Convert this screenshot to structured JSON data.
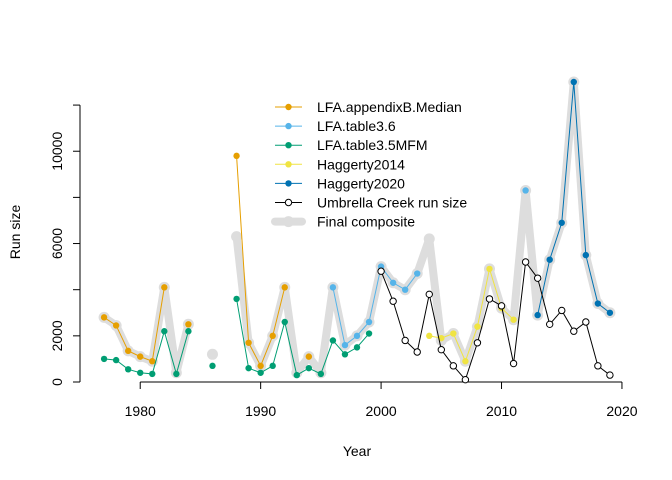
{
  "chart_data": {
    "type": "line",
    "xlabel": "Year",
    "ylabel": "Run size",
    "xlim": [
      1975,
      2021
    ],
    "ylim": [
      0,
      13000
    ],
    "x_ticks": [
      1980,
      1990,
      2000,
      2010,
      2020
    ],
    "y_ticks": [
      0,
      2000,
      6000,
      10000
    ],
    "grid": false,
    "legend_position": "top-center",
    "composite": {
      "name": "Final composite",
      "color": "#dddddd",
      "segments": [
        [
          [
            1977,
            2800
          ],
          [
            1978,
            2450
          ],
          [
            1979,
            1350
          ],
          [
            1980,
            1100
          ],
          [
            1981,
            900
          ],
          [
            1982,
            4100
          ],
          [
            1983,
            400
          ],
          [
            1984,
            2500
          ]
        ],
        [
          [
            1986,
            1200
          ]
        ],
        [
          [
            1988,
            6300
          ],
          [
            1989,
            1700
          ],
          [
            1990,
            700
          ],
          [
            1991,
            2000
          ],
          [
            1992,
            4100
          ],
          [
            1993,
            400
          ],
          [
            1994,
            1100
          ],
          [
            1995,
            400
          ],
          [
            1996,
            4100
          ],
          [
            1997,
            1600
          ],
          [
            1998,
            2000
          ],
          [
            1999,
            2600
          ],
          [
            2000,
            5000
          ],
          [
            2001,
            4300
          ],
          [
            2002,
            4000
          ],
          [
            2003,
            4700
          ],
          [
            2004,
            6200
          ],
          [
            2005,
            1800
          ],
          [
            2006,
            2100
          ],
          [
            2007,
            900
          ],
          [
            2008,
            2400
          ],
          [
            2009,
            4900
          ],
          [
            2010,
            3200
          ],
          [
            2011,
            2700
          ],
          [
            2012,
            8300
          ],
          [
            2013,
            2900
          ],
          [
            2014,
            5300
          ],
          [
            2015,
            6900
          ],
          [
            2016,
            13000
          ],
          [
            2017,
            5500
          ],
          [
            2018,
            3400
          ],
          [
            2019,
            3000
          ]
        ]
      ]
    },
    "series": [
      {
        "name": "LFA.appendixB.Median",
        "color": "#E69F00",
        "segments": [
          [
            [
              1977,
              2800
            ],
            [
              1978,
              2450
            ],
            [
              1979,
              1350
            ],
            [
              1980,
              1100
            ],
            [
              1981,
              900
            ],
            [
              1982,
              4100
            ]
          ],
          [
            [
              1984,
              2500
            ]
          ],
          [
            [
              1988,
              9800
            ],
            [
              1989,
              1700
            ],
            [
              1990,
              700
            ],
            [
              1991,
              2000
            ],
            [
              1992,
              4100
            ]
          ],
          [
            [
              1994,
              1100
            ]
          ]
        ]
      },
      {
        "name": "LFA.table3.6",
        "color": "#56B4E9",
        "segments": [
          [
            [
              1996,
              4100
            ],
            [
              1997,
              1600
            ],
            [
              1998,
              2000
            ],
            [
              1999,
              2600
            ],
            [
              2000,
              5000
            ],
            [
              2001,
              4300
            ],
            [
              2002,
              4000
            ],
            [
              2003,
              4700
            ]
          ],
          [
            [
              2012,
              8300
            ]
          ]
        ]
      },
      {
        "name": "LFA.table3.5MFM",
        "color": "#009E73",
        "segments": [
          [
            [
              1977,
              1000
            ],
            [
              1978,
              950
            ],
            [
              1979,
              550
            ],
            [
              1980,
              400
            ],
            [
              1981,
              350
            ],
            [
              1982,
              2200
            ],
            [
              1983,
              350
            ],
            [
              1984,
              2200
            ]
          ],
          [
            [
              1986,
              700
            ]
          ],
          [
            [
              1988,
              3600
            ],
            [
              1989,
              600
            ],
            [
              1990,
              400
            ],
            [
              1991,
              700
            ],
            [
              1992,
              2600
            ],
            [
              1993,
              300
            ],
            [
              1994,
              600
            ],
            [
              1995,
              350
            ],
            [
              1996,
              1800
            ],
            [
              1997,
              1200
            ],
            [
              1998,
              1500
            ],
            [
              1999,
              2100
            ]
          ]
        ]
      },
      {
        "name": "Haggerty2014",
        "color": "#F0E442",
        "segments": [
          [
            [
              2004,
              2000
            ],
            [
              2005,
              1900
            ],
            [
              2006,
              2100
            ],
            [
              2007,
              900
            ],
            [
              2008,
              2400
            ],
            [
              2009,
              4900
            ],
            [
              2010,
              3200
            ],
            [
              2011,
              2700
            ]
          ]
        ]
      },
      {
        "name": "Haggerty2020",
        "color": "#0072B2",
        "segments": [
          [
            [
              2013,
              2900
            ],
            [
              2014,
              5300
            ],
            [
              2015,
              6900
            ],
            [
              2016,
              13000
            ],
            [
              2017,
              5500
            ],
            [
              2018,
              3400
            ],
            [
              2019,
              3000
            ]
          ]
        ]
      },
      {
        "name": "Umbrella Creek run size",
        "color": "#000000",
        "open_markers": true,
        "segments": [
          [
            [
              2000,
              4800
            ],
            [
              2001,
              3500
            ],
            [
              2002,
              1800
            ],
            [
              2003,
              1300
            ],
            [
              2004,
              3800
            ],
            [
              2005,
              1400
            ],
            [
              2006,
              700
            ],
            [
              2007,
              100
            ],
            [
              2008,
              1700
            ],
            [
              2009,
              3600
            ],
            [
              2010,
              3300
            ],
            [
              2011,
              800
            ],
            [
              2012,
              5200
            ],
            [
              2013,
              4500
            ],
            [
              2014,
              2500
            ],
            [
              2015,
              3100
            ],
            [
              2016,
              2200
            ],
            [
              2017,
              2600
            ],
            [
              2018,
              700
            ],
            [
              2019,
              300
            ]
          ]
        ]
      }
    ]
  }
}
